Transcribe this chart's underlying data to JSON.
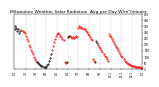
{
  "title": "Milwaukee Weather Solar Radiation  Avg per Day W/m²/minute",
  "title_fontsize": 3.2,
  "bg_color": "#ffffff",
  "grid_color": "#888888",
  "xlim": [
    0,
    365
  ],
  "ylim": [
    0,
    450
  ],
  "yticks": [
    0,
    50,
    100,
    150,
    200,
    250,
    300,
    350,
    400,
    450
  ],
  "ytick_labels": [
    "0",
    "50",
    "100",
    "150",
    "200",
    "250",
    "300",
    "350",
    "400",
    "450"
  ],
  "vlines": [
    32,
    60,
    91,
    121,
    152,
    182,
    213,
    244,
    274,
    305,
    335
  ],
  "xtick_positions": [
    1,
    32,
    60,
    91,
    121,
    152,
    182,
    213,
    244,
    274,
    305,
    335,
    365
  ],
  "xtick_labels": [
    "1/1",
    "2/1",
    "3/1",
    "4/1",
    "5/1",
    "6/1",
    "7/1",
    "8/1",
    "9/1",
    "10/1",
    "11/1",
    "12/1",
    "1/1"
  ],
  "data": [
    [
      1,
      350
    ],
    [
      3,
      330
    ],
    [
      5,
      340
    ],
    [
      8,
      310
    ],
    [
      11,
      325
    ],
    [
      14,
      300
    ],
    [
      17,
      310
    ],
    [
      20,
      320
    ],
    [
      23,
      315
    ],
    [
      26,
      305
    ],
    [
      29,
      295
    ],
    [
      32,
      270
    ],
    [
      35,
      250
    ],
    [
      38,
      230
    ],
    [
      41,
      200
    ],
    [
      44,
      180
    ],
    [
      47,
      160
    ],
    [
      50,
      140
    ],
    [
      53,
      120
    ],
    [
      56,
      100
    ],
    [
      59,
      85
    ],
    [
      62,
      70
    ],
    [
      65,
      60
    ],
    [
      68,
      50
    ],
    [
      71,
      40
    ],
    [
      74,
      32
    ],
    [
      77,
      28
    ],
    [
      80,
      25
    ],
    [
      83,
      20
    ],
    [
      86,
      18
    ],
    [
      89,
      20
    ],
    [
      92,
      30
    ],
    [
      95,
      45
    ],
    [
      98,
      65
    ],
    [
      101,
      90
    ],
    [
      104,
      120
    ],
    [
      107,
      155
    ],
    [
      110,
      190
    ],
    [
      113,
      220
    ],
    [
      116,
      250
    ],
    [
      119,
      270
    ],
    [
      122,
      285
    ],
    [
      125,
      295
    ],
    [
      128,
      285
    ],
    [
      131,
      275
    ],
    [
      134,
      265
    ],
    [
      137,
      250
    ],
    [
      140,
      240
    ],
    [
      143,
      60
    ],
    [
      146,
      50
    ],
    [
      149,
      55
    ],
    [
      152,
      260
    ],
    [
      155,
      270
    ],
    [
      158,
      275
    ],
    [
      161,
      265
    ],
    [
      164,
      255
    ],
    [
      167,
      260
    ],
    [
      170,
      255
    ],
    [
      173,
      265
    ],
    [
      176,
      270
    ],
    [
      179,
      260
    ],
    [
      182,
      340
    ],
    [
      185,
      350
    ],
    [
      188,
      345
    ],
    [
      191,
      340
    ],
    [
      194,
      335
    ],
    [
      197,
      330
    ],
    [
      200,
      325
    ],
    [
      203,
      315
    ],
    [
      206,
      305
    ],
    [
      209,
      290
    ],
    [
      212,
      280
    ],
    [
      215,
      265
    ],
    [
      218,
      250
    ],
    [
      221,
      235
    ],
    [
      224,
      80
    ],
    [
      227,
      70
    ],
    [
      230,
      60
    ],
    [
      233,
      230
    ],
    [
      236,
      215
    ],
    [
      239,
      200
    ],
    [
      242,
      185
    ],
    [
      245,
      170
    ],
    [
      248,
      155
    ],
    [
      251,
      140
    ],
    [
      254,
      125
    ],
    [
      257,
      110
    ],
    [
      260,
      95
    ],
    [
      263,
      80
    ],
    [
      266,
      70
    ],
    [
      269,
      290
    ],
    [
      272,
      275
    ],
    [
      275,
      260
    ],
    [
      278,
      245
    ],
    [
      281,
      230
    ],
    [
      284,
      215
    ],
    [
      287,
      200
    ],
    [
      290,
      185
    ],
    [
      293,
      170
    ],
    [
      296,
      155
    ],
    [
      299,
      140
    ],
    [
      302,
      125
    ],
    [
      305,
      110
    ],
    [
      308,
      95
    ],
    [
      311,
      80
    ],
    [
      314,
      70
    ],
    [
      317,
      60
    ],
    [
      320,
      50
    ],
    [
      323,
      45
    ],
    [
      326,
      40
    ],
    [
      329,
      35
    ],
    [
      332,
      30
    ],
    [
      335,
      28
    ],
    [
      338,
      25
    ],
    [
      341,
      22
    ],
    [
      344,
      20
    ],
    [
      347,
      18
    ],
    [
      350,
      16
    ],
    [
      353,
      15
    ],
    [
      356,
      14
    ],
    [
      359,
      13
    ],
    [
      362,
      12
    ],
    [
      365,
      11
    ]
  ],
  "data_colors": [
    "black",
    "black",
    "black",
    "black",
    "black",
    "black",
    "black",
    "red",
    "red",
    "red",
    "red",
    "red",
    "red",
    "red",
    "red",
    "red",
    "red",
    "red",
    "red",
    "red",
    "red",
    "red",
    "black",
    "black",
    "black",
    "black",
    "black",
    "black",
    "black",
    "black",
    "black",
    "black",
    "black",
    "black",
    "black",
    "black",
    "red",
    "red",
    "red",
    "red",
    "red",
    "red",
    "red",
    "red",
    "red",
    "red",
    "red",
    "red",
    "red",
    "red",
    "black",
    "black",
    "black",
    "red",
    "red",
    "red",
    "red",
    "red",
    "red",
    "red",
    "red",
    "red",
    "red",
    "red",
    "red",
    "red",
    "red",
    "red",
    "red",
    "red",
    "red",
    "red",
    "red",
    "red",
    "red",
    "red",
    "red",
    "black",
    "black",
    "black",
    "red",
    "red",
    "red",
    "red",
    "red",
    "red",
    "red",
    "red",
    "red",
    "red",
    "red",
    "red",
    "red",
    "red",
    "red",
    "red",
    "red",
    "red",
    "red",
    "red",
    "red",
    "red",
    "red",
    "red",
    "red",
    "red",
    "red",
    "red",
    "red",
    "red",
    "red",
    "red",
    "red",
    "red",
    "red",
    "red",
    "red",
    "red",
    "red",
    "red",
    "red",
    "red",
    "red",
    "red",
    "red",
    "red",
    "red",
    "red",
    "red",
    "red",
    "red"
  ]
}
